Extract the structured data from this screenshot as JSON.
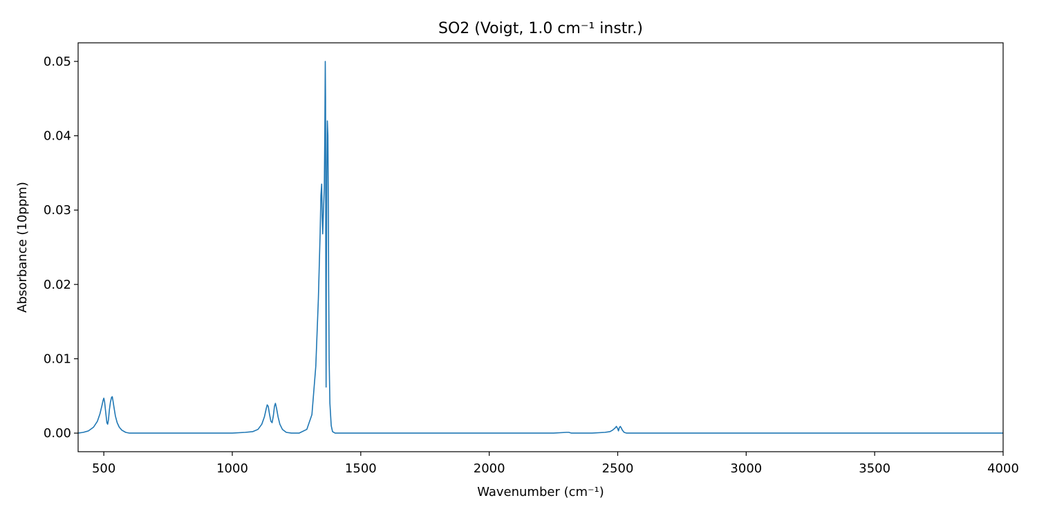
{
  "chart_data": {
    "type": "line",
    "title": "SO2 (Voigt, 1.0 cm⁻¹ instr.)",
    "xlabel": "Wavenumber (cm⁻¹)",
    "ylabel": "Absorbance (10ppm)",
    "xlim": [
      400,
      4000
    ],
    "ylim": [
      -0.0025,
      0.0525
    ],
    "x_ticks": [
      500,
      1000,
      1500,
      2000,
      2500,
      3000,
      3500,
      4000
    ],
    "x_tick_labels": [
      "500",
      "1000",
      "1500",
      "2000",
      "2500",
      "3000",
      "3500",
      "4000"
    ],
    "y_ticks": [
      0.0,
      0.01,
      0.02,
      0.03,
      0.04,
      0.05
    ],
    "y_tick_labels": [
      "0.00",
      "0.01",
      "0.02",
      "0.03",
      "0.04",
      "0.05"
    ],
    "grid": false,
    "legend": "none",
    "series": [
      {
        "color": "#1f77b4",
        "x": [
          400,
          420,
          440,
          460,
          475,
          485,
          492,
          497,
          500,
          503,
          507,
          512,
          515,
          518,
          522,
          526,
          530,
          533,
          536,
          540,
          545,
          552,
          560,
          570,
          585,
          600,
          620,
          650,
          700,
          800,
          900,
          1000,
          1050,
          1080,
          1100,
          1115,
          1125,
          1132,
          1136,
          1140,
          1145,
          1150,
          1155,
          1160,
          1164,
          1168,
          1172,
          1178,
          1185,
          1195,
          1210,
          1230,
          1260,
          1290,
          1310,
          1325,
          1335,
          1342,
          1345,
          1348,
          1350,
          1352,
          1355,
          1358,
          1360,
          1362,
          1363,
          1364,
          1365,
          1366,
          1368,
          1370,
          1372,
          1374,
          1375,
          1377,
          1380,
          1385,
          1390,
          1400,
          1420,
          1500,
          2000,
          2250,
          2300,
          2310,
          2320,
          2400,
          2450,
          2470,
          2480,
          2490,
          2495,
          2500,
          2503,
          2506,
          2510,
          2514,
          2518,
          2525,
          2535,
          2550,
          2600,
          3000,
          3500,
          4000
        ],
        "y": [
          0.0,
          0.0001,
          0.0003,
          0.0008,
          0.0016,
          0.0026,
          0.0036,
          0.0044,
          0.0047,
          0.0042,
          0.0029,
          0.0014,
          0.0012,
          0.0018,
          0.0032,
          0.0042,
          0.0048,
          0.0049,
          0.0043,
          0.0034,
          0.0023,
          0.0014,
          0.0008,
          0.0004,
          0.0001,
          0.0,
          0.0,
          0.0,
          0.0,
          0.0,
          0.0,
          0.0,
          0.0001,
          0.0002,
          0.0005,
          0.0012,
          0.0022,
          0.0033,
          0.0038,
          0.0036,
          0.0025,
          0.0016,
          0.0014,
          0.0024,
          0.0036,
          0.004,
          0.0034,
          0.0022,
          0.0012,
          0.0005,
          0.0001,
          0.0,
          0.0,
          0.0005,
          0.0025,
          0.009,
          0.018,
          0.027,
          0.032,
          0.0335,
          0.029,
          0.0268,
          0.03,
          0.033,
          0.04,
          0.05,
          0.045,
          0.02,
          0.0062,
          0.02,
          0.035,
          0.042,
          0.04,
          0.03,
          0.02,
          0.01,
          0.004,
          0.001,
          0.0002,
          0.0,
          0.0,
          0.0,
          0.0,
          0.0,
          0.0001,
          0.0001,
          0.0,
          0.0,
          0.0001,
          0.0002,
          0.0004,
          0.0007,
          0.0009,
          0.0006,
          0.0003,
          0.0007,
          0.0009,
          0.0007,
          0.0004,
          0.0001,
          0.0,
          0.0,
          0.0,
          0.0,
          0.0,
          0.0
        ]
      }
    ]
  }
}
